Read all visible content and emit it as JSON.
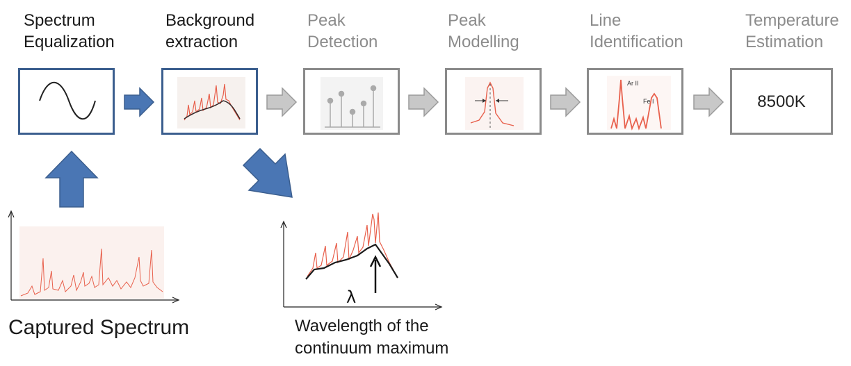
{
  "stages": [
    {
      "line1": "Spectrum",
      "line2": "Equalization"
    },
    {
      "line1": "Background",
      "line2": "extraction"
    },
    {
      "line1": "Peak",
      "line2": "Detection"
    },
    {
      "line1": "Peak",
      "line2": "Modelling"
    },
    {
      "line1": "Line",
      "line2": "Identification"
    },
    {
      "line1": "Temperature",
      "line2": "Estimation"
    }
  ],
  "temperature_value": "8500K",
  "line_id_labels": {
    "ar": "Ar II",
    "fe": "Fe I"
  },
  "captured_spectrum_label": "Captured Spectrum",
  "continuum_label": {
    "line1": "Wavelength of the",
    "line2": "continuum maximum"
  },
  "lambda_symbol": "λ",
  "colors": {
    "active_border": "#3b5e8e",
    "dim_border": "#8a8a8a",
    "arrow_blue": "#4a76b4",
    "arrow_gray": "#b4b4b4",
    "spectrum_red": "#e8604c"
  }
}
